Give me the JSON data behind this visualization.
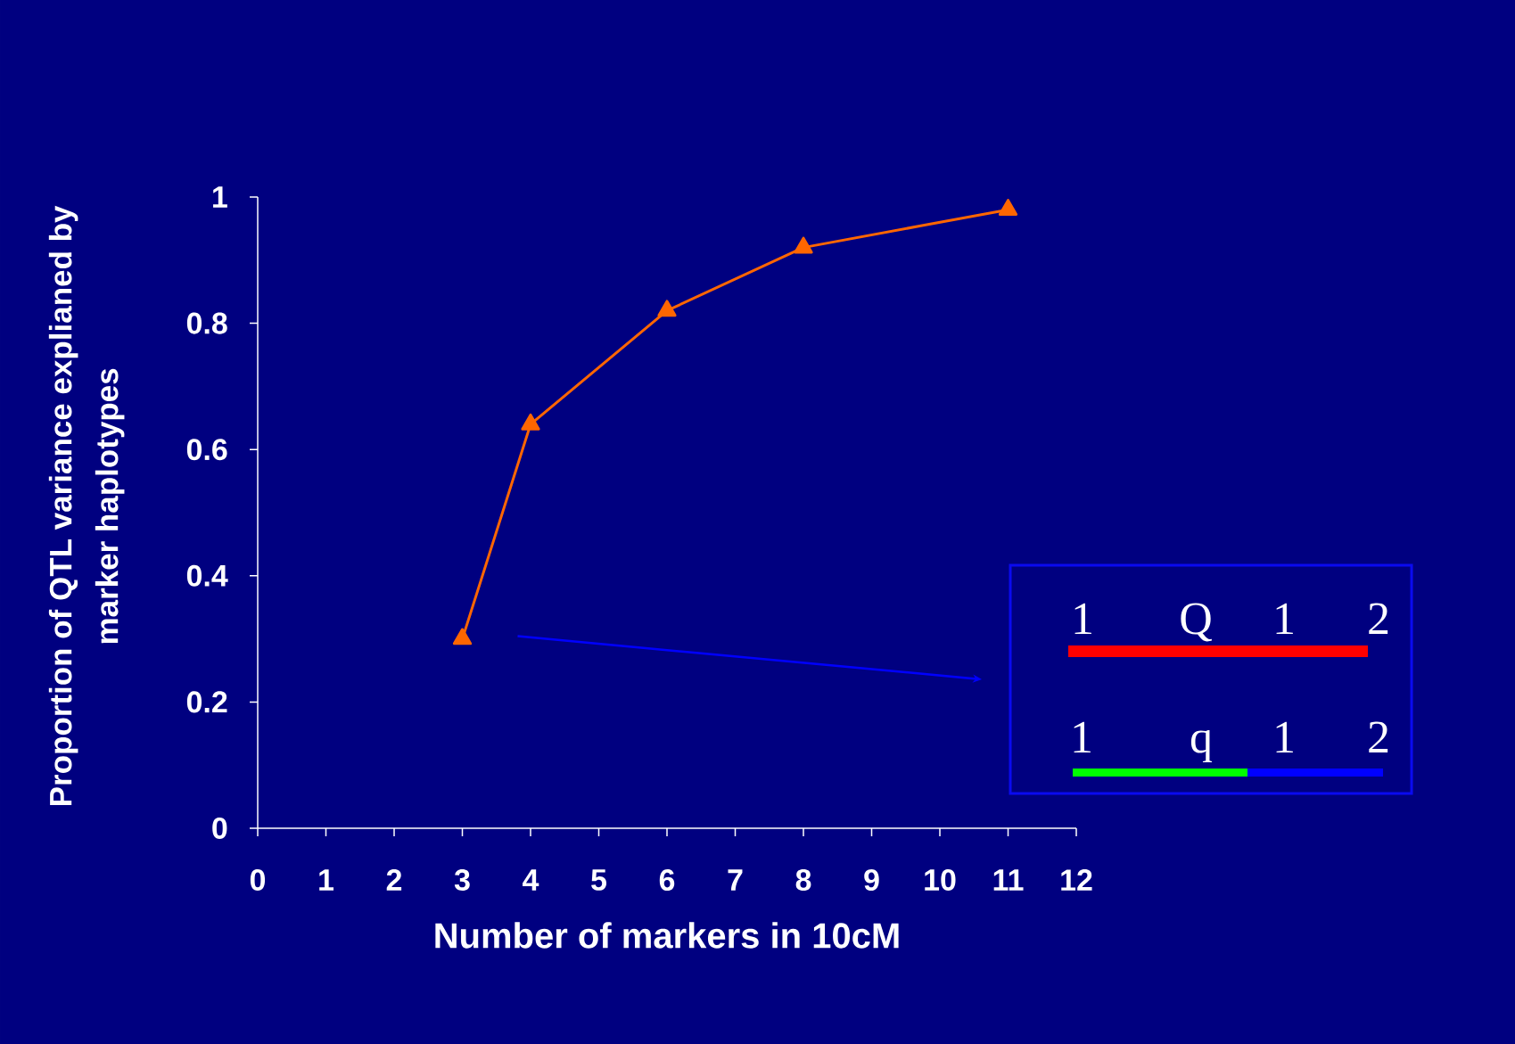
{
  "chart_data": {
    "type": "line",
    "xlabel": "Number of markers in 10cM",
    "ylabel": "Proportion of QTL variance explianed by marker haplotypes",
    "x": [
      3,
      4,
      6,
      8,
      11
    ],
    "series": [
      {
        "color": "#ff6600",
        "values": [
          0.3,
          0.64,
          0.82,
          0.92,
          0.98
        ]
      }
    ],
    "marker": "triangle",
    "xlim": [
      0,
      12
    ],
    "xticks": [
      0,
      1,
      2,
      3,
      4,
      5,
      6,
      7,
      8,
      9,
      10,
      11,
      12
    ],
    "ylim": [
      0,
      1
    ],
    "yticks": [
      0,
      0.2,
      0.4,
      0.6,
      0.8,
      1
    ],
    "annotations": [
      "1",
      "Q",
      "1",
      "2",
      "1",
      "q",
      "1",
      "2"
    ]
  }
}
